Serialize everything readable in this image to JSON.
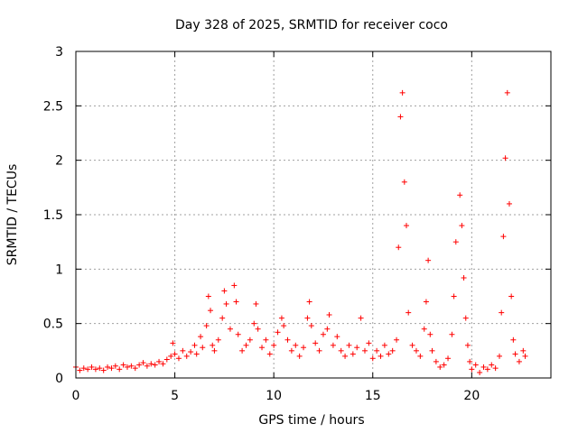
{
  "chart_data": {
    "type": "scatter",
    "title": "Day 328 of 2025, SRMTID for receiver coco",
    "xlabel": "GPS time / hours",
    "ylabel": "SRMTID / TECUs",
    "xlim": [
      0,
      24
    ],
    "ylim": [
      0,
      3
    ],
    "x_ticks": [
      0,
      5,
      10,
      15,
      20
    ],
    "x_tick_labels": [
      "0",
      "5",
      "10",
      "15",
      "20"
    ],
    "y_ticks": [
      0,
      0.5,
      1,
      1.5,
      2,
      2.5,
      3
    ],
    "y_tick_labels": [
      "0",
      "0.5",
      "1",
      "1.5",
      "2",
      "2.5",
      "3"
    ],
    "grid": true,
    "marker": "+",
    "color": "#ff0000",
    "series": [
      {
        "name": "SRMTID",
        "points": [
          [
            0.0,
            0.1
          ],
          [
            0.2,
            0.07
          ],
          [
            0.4,
            0.09
          ],
          [
            0.6,
            0.08
          ],
          [
            0.8,
            0.1
          ],
          [
            1.0,
            0.08
          ],
          [
            1.2,
            0.09
          ],
          [
            1.4,
            0.07
          ],
          [
            1.6,
            0.1
          ],
          [
            1.8,
            0.09
          ],
          [
            2.0,
            0.11
          ],
          [
            2.2,
            0.08
          ],
          [
            2.4,
            0.12
          ],
          [
            2.6,
            0.1
          ],
          [
            2.8,
            0.11
          ],
          [
            3.0,
            0.09
          ],
          [
            3.2,
            0.12
          ],
          [
            3.4,
            0.14
          ],
          [
            3.6,
            0.11
          ],
          [
            3.8,
            0.13
          ],
          [
            4.0,
            0.12
          ],
          [
            4.2,
            0.15
          ],
          [
            4.4,
            0.13
          ],
          [
            4.6,
            0.17
          ],
          [
            4.8,
            0.2
          ],
          [
            4.9,
            0.32
          ],
          [
            5.0,
            0.22
          ],
          [
            5.2,
            0.18
          ],
          [
            5.4,
            0.25
          ],
          [
            5.6,
            0.2
          ],
          [
            5.8,
            0.24
          ],
          [
            6.0,
            0.3
          ],
          [
            6.1,
            0.22
          ],
          [
            6.3,
            0.38
          ],
          [
            6.4,
            0.28
          ],
          [
            6.6,
            0.48
          ],
          [
            6.7,
            0.75
          ],
          [
            6.8,
            0.62
          ],
          [
            6.9,
            0.3
          ],
          [
            7.0,
            0.25
          ],
          [
            7.2,
            0.35
          ],
          [
            7.4,
            0.55
          ],
          [
            7.5,
            0.8
          ],
          [
            7.6,
            0.68
          ],
          [
            7.8,
            0.45
          ],
          [
            8.0,
            0.85
          ],
          [
            8.1,
            0.7
          ],
          [
            8.2,
            0.4
          ],
          [
            8.4,
            0.25
          ],
          [
            8.6,
            0.3
          ],
          [
            8.8,
            0.35
          ],
          [
            9.0,
            0.5
          ],
          [
            9.1,
            0.68
          ],
          [
            9.2,
            0.45
          ],
          [
            9.4,
            0.28
          ],
          [
            9.6,
            0.35
          ],
          [
            9.8,
            0.22
          ],
          [
            10.0,
            0.3
          ],
          [
            10.2,
            0.42
          ],
          [
            10.4,
            0.55
          ],
          [
            10.5,
            0.48
          ],
          [
            10.7,
            0.35
          ],
          [
            10.9,
            0.25
          ],
          [
            11.1,
            0.3
          ],
          [
            11.3,
            0.2
          ],
          [
            11.5,
            0.28
          ],
          [
            11.7,
            0.55
          ],
          [
            11.8,
            0.7
          ],
          [
            11.9,
            0.48
          ],
          [
            12.1,
            0.32
          ],
          [
            12.3,
            0.25
          ],
          [
            12.5,
            0.4
          ],
          [
            12.7,
            0.45
          ],
          [
            12.8,
            0.58
          ],
          [
            13.0,
            0.3
          ],
          [
            13.2,
            0.38
          ],
          [
            13.4,
            0.25
          ],
          [
            13.6,
            0.2
          ],
          [
            13.8,
            0.3
          ],
          [
            14.0,
            0.22
          ],
          [
            14.2,
            0.28
          ],
          [
            14.4,
            0.55
          ],
          [
            14.6,
            0.25
          ],
          [
            14.8,
            0.32
          ],
          [
            15.0,
            0.18
          ],
          [
            15.2,
            0.25
          ],
          [
            15.4,
            0.2
          ],
          [
            15.6,
            0.3
          ],
          [
            15.8,
            0.22
          ],
          [
            16.0,
            0.25
          ],
          [
            16.2,
            0.35
          ],
          [
            16.3,
            1.2
          ],
          [
            16.4,
            2.4
          ],
          [
            16.5,
            2.62
          ],
          [
            16.6,
            1.8
          ],
          [
            16.7,
            1.4
          ],
          [
            16.8,
            0.6
          ],
          [
            17.0,
            0.3
          ],
          [
            17.2,
            0.25
          ],
          [
            17.4,
            0.2
          ],
          [
            17.6,
            0.45
          ],
          [
            17.7,
            0.7
          ],
          [
            17.8,
            1.08
          ],
          [
            17.9,
            0.4
          ],
          [
            18.0,
            0.25
          ],
          [
            18.2,
            0.15
          ],
          [
            18.4,
            0.1
          ],
          [
            18.6,
            0.12
          ],
          [
            18.8,
            0.18
          ],
          [
            19.0,
            0.4
          ],
          [
            19.1,
            0.75
          ],
          [
            19.2,
            1.25
          ],
          [
            19.4,
            1.68
          ],
          [
            19.5,
            1.4
          ],
          [
            19.6,
            0.92
          ],
          [
            19.7,
            0.55
          ],
          [
            19.8,
            0.3
          ],
          [
            19.9,
            0.15
          ],
          [
            20.0,
            0.08
          ],
          [
            20.2,
            0.12
          ],
          [
            20.4,
            0.05
          ],
          [
            20.6,
            0.1
          ],
          [
            20.8,
            0.08
          ],
          [
            21.0,
            0.12
          ],
          [
            21.2,
            0.09
          ],
          [
            21.4,
            0.2
          ],
          [
            21.5,
            0.6
          ],
          [
            21.6,
            1.3
          ],
          [
            21.7,
            2.02
          ],
          [
            21.8,
            2.62
          ],
          [
            21.9,
            1.6
          ],
          [
            22.0,
            0.75
          ],
          [
            22.1,
            0.35
          ],
          [
            22.2,
            0.22
          ],
          [
            22.4,
            0.15
          ],
          [
            22.6,
            0.25
          ],
          [
            22.7,
            0.2
          ]
        ]
      }
    ]
  }
}
